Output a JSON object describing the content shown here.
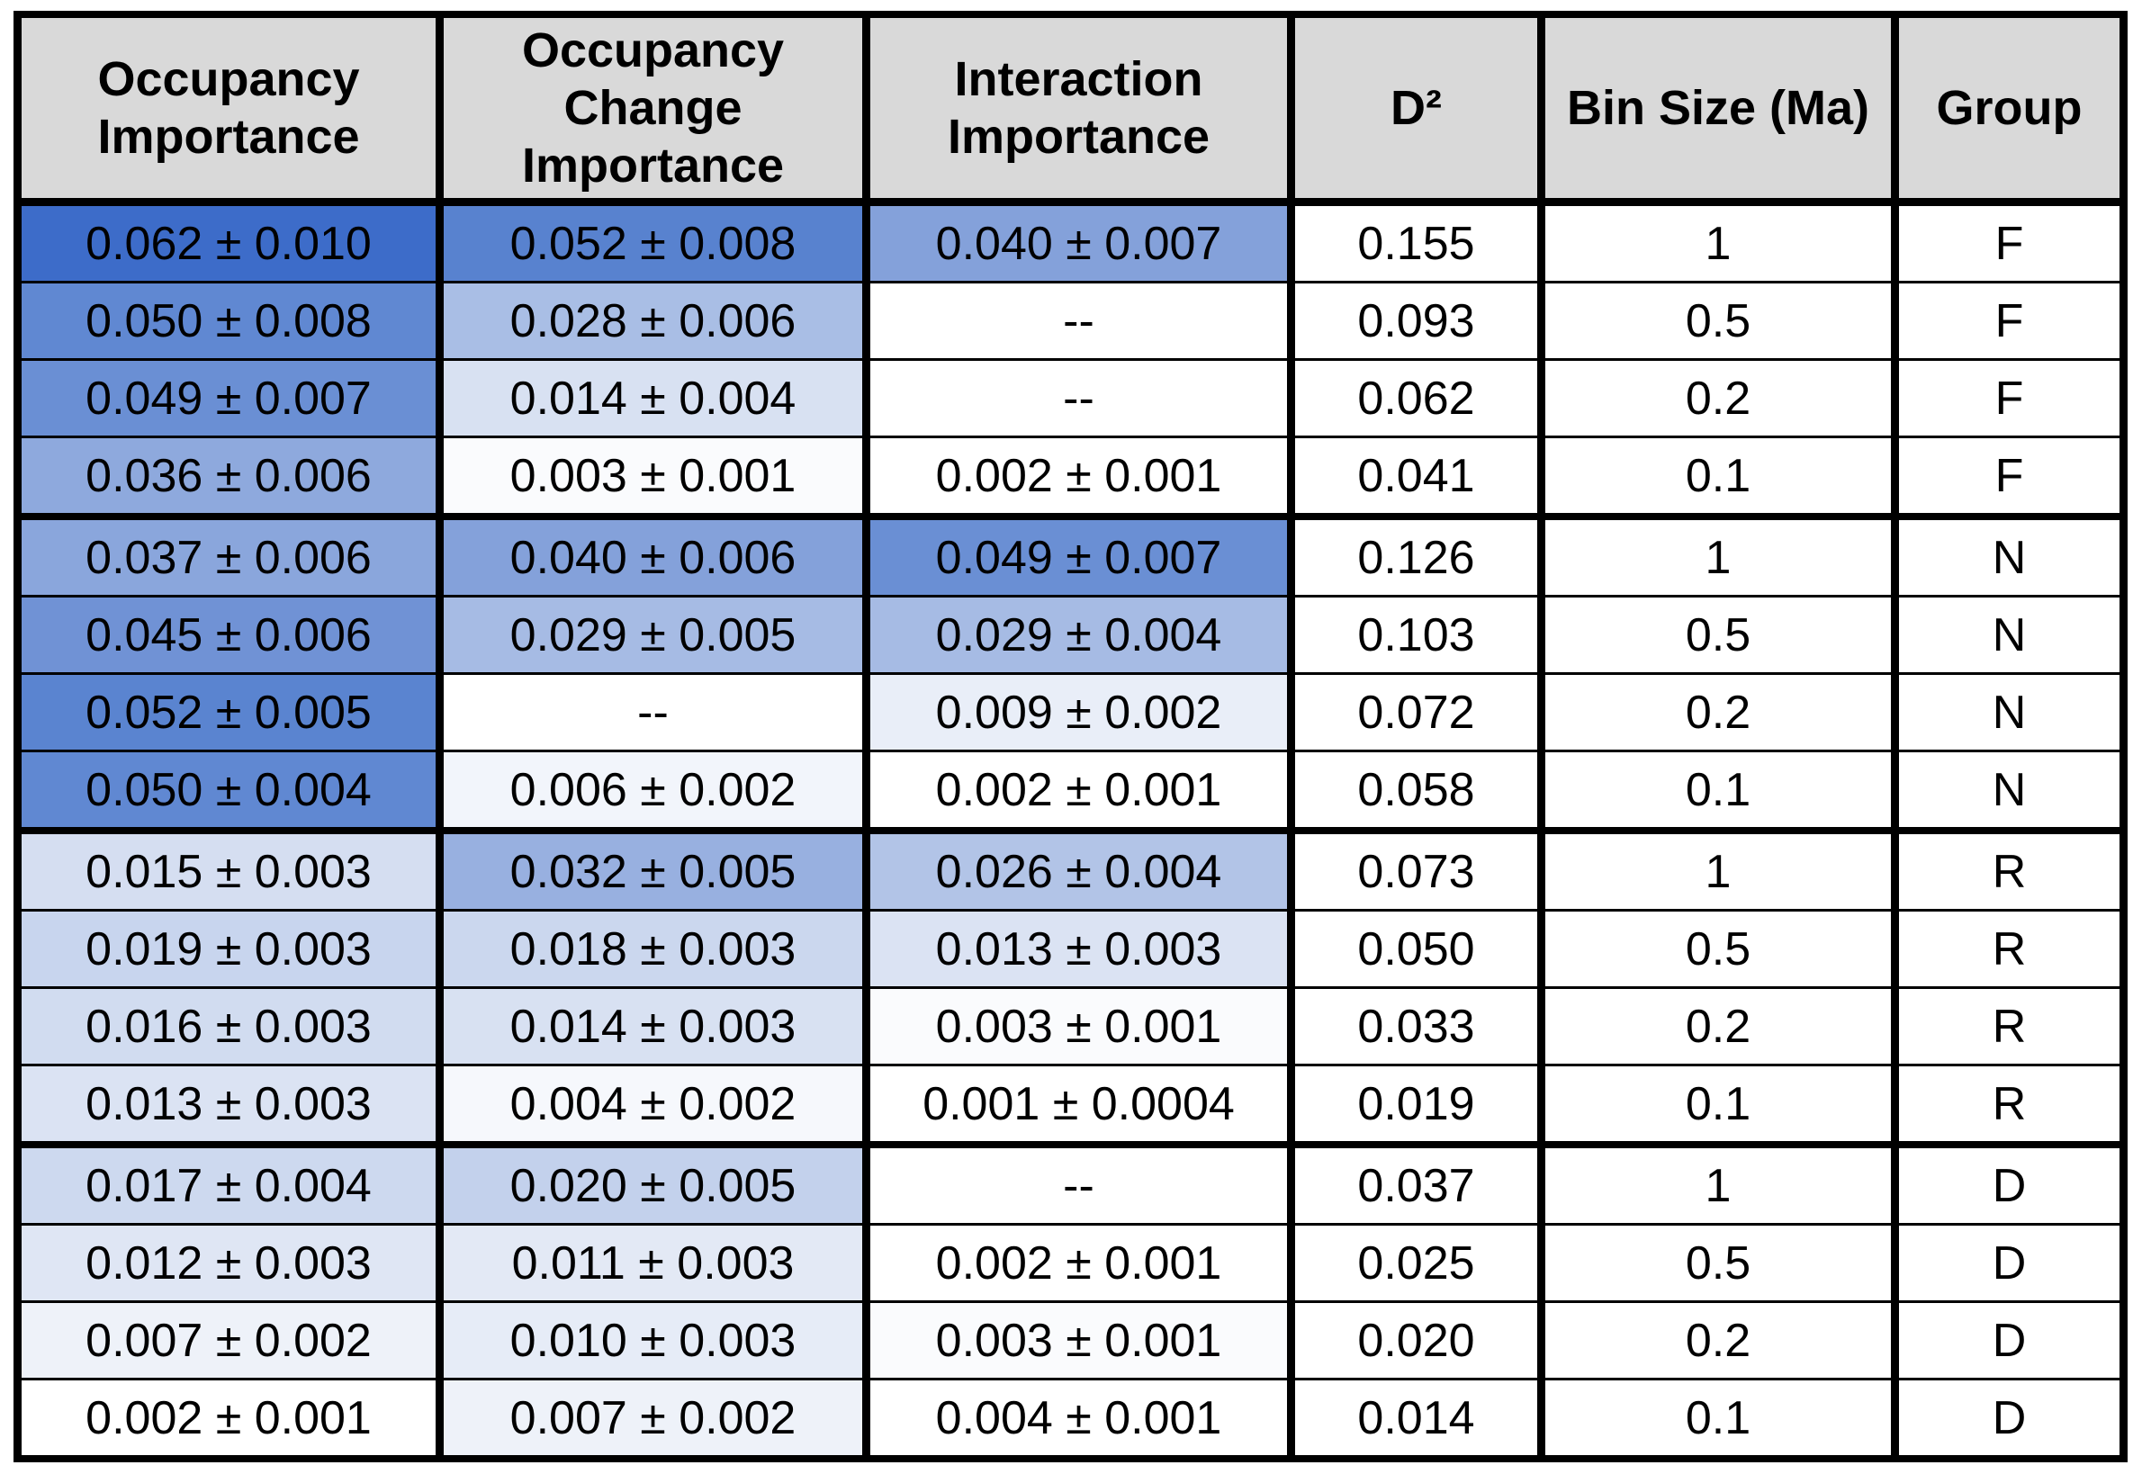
{
  "table": {
    "header": [
      "Occupancy Importance",
      "Occupancy Change Importance",
      "Interaction Importance",
      "D²",
      "Bin Size (Ma)",
      "Group"
    ],
    "header_fill": "#d9d9d9",
    "rows": [
      {
        "cells": [
          "0.062 ± 0.010",
          "0.052 ± 0.008",
          "0.040 ± 0.007",
          "0.155",
          "1",
          "F"
        ],
        "fills": [
          "#3d6cc9",
          "#5882cf",
          "#84a1da"
        ]
      },
      {
        "cells": [
          "0.050 ± 0.008",
          "0.028 ± 0.006",
          "--",
          "0.093",
          "0.5",
          "F"
        ],
        "fills": [
          "#6088d2",
          "#a9bee5",
          "#ffffff"
        ]
      },
      {
        "cells": [
          "0.049 ± 0.007",
          "0.014 ± 0.004",
          "--",
          "0.062",
          "0.2",
          "F"
        ],
        "fills": [
          "#6a8fd4",
          "#d8e1f2",
          "#ffffff"
        ]
      },
      {
        "cells": [
          "0.036 ± 0.006",
          "0.003 ± 0.001",
          "0.002 ± 0.001",
          "0.041",
          "0.1",
          "F"
        ],
        "fills": [
          "#8ea9dd",
          "#fafbfd",
          "#ffffff"
        ]
      },
      {
        "cells": [
          "0.037 ± 0.006",
          "0.040 ± 0.006",
          "0.049 ± 0.007",
          "0.126",
          "1",
          "N"
        ],
        "fills": [
          "#8aa6dc",
          "#84a1da",
          "#6a8fd4"
        ]
      },
      {
        "cells": [
          "0.045 ± 0.006",
          "0.029 ± 0.005",
          "0.029 ± 0.004",
          "0.103",
          "0.5",
          "N"
        ],
        "fills": [
          "#7092d5",
          "#a6bbe4",
          "#a6bbe4"
        ]
      },
      {
        "cells": [
          "0.052 ± 0.005",
          "--",
          "0.009 ± 0.002",
          "0.072",
          "0.2",
          "N"
        ],
        "fills": [
          "#5a84d0",
          "#ffffff",
          "#e9eef8"
        ]
      },
      {
        "cells": [
          "0.050 ± 0.004",
          "0.006 ± 0.002",
          "0.002 ± 0.001",
          "0.058",
          "0.1",
          "N"
        ],
        "fills": [
          "#6088d2",
          "#f2f5fb",
          "#ffffff"
        ]
      },
      {
        "cells": [
          "0.015 ± 0.003",
          "0.032 ± 0.005",
          "0.026 ± 0.004",
          "0.073",
          "1",
          "R"
        ],
        "fills": [
          "#d5def1",
          "#98b0e0",
          "#b2c4e7"
        ]
      },
      {
        "cells": [
          "0.019 ± 0.003",
          "0.018 ± 0.003",
          "0.013 ± 0.003",
          "0.050",
          "0.5",
          "R"
        ],
        "fills": [
          "#c8d5ee",
          "#cbd7ee",
          "#dbe3f3"
        ]
      },
      {
        "cells": [
          "0.016 ± 0.003",
          "0.014 ± 0.003",
          "0.003 ± 0.001",
          "0.033",
          "0.2",
          "R"
        ],
        "fills": [
          "#d1dcf0",
          "#d8e1f2",
          "#fafbfd"
        ]
      },
      {
        "cells": [
          "0.013 ± 0.003",
          "0.004 ± 0.002",
          "0.001 ± 0.0004",
          "0.019",
          "0.1",
          "R"
        ],
        "fills": [
          "#dbe3f3",
          "#f6f8fc",
          "#ffffff"
        ]
      },
      {
        "cells": [
          "0.017 ± 0.004",
          "0.020 ± 0.005",
          "--",
          "0.037",
          "1",
          "D"
        ],
        "fills": [
          "#cdd9ef",
          "#c3d1ec",
          "#ffffff"
        ]
      },
      {
        "cells": [
          "0.012 ± 0.003",
          "0.011 ± 0.003",
          "0.002 ± 0.001",
          "0.025",
          "0.5",
          "D"
        ],
        "fills": [
          "#dfe6f4",
          "#e3e9f5",
          "#ffffff"
        ]
      },
      {
        "cells": [
          "0.007 ± 0.002",
          "0.010 ± 0.003",
          "0.003 ± 0.001",
          "0.020",
          "0.2",
          "D"
        ],
        "fills": [
          "#eef2f9",
          "#e6ecf7",
          "#fafbfd"
        ]
      },
      {
        "cells": [
          "0.002 ± 0.001",
          "0.007 ± 0.002",
          "0.004 ± 0.001",
          "0.014",
          "0.1",
          "D"
        ],
        "fills": [
          "#ffffff",
          "#eef2f9",
          "#ffffff"
        ]
      }
    ]
  }
}
